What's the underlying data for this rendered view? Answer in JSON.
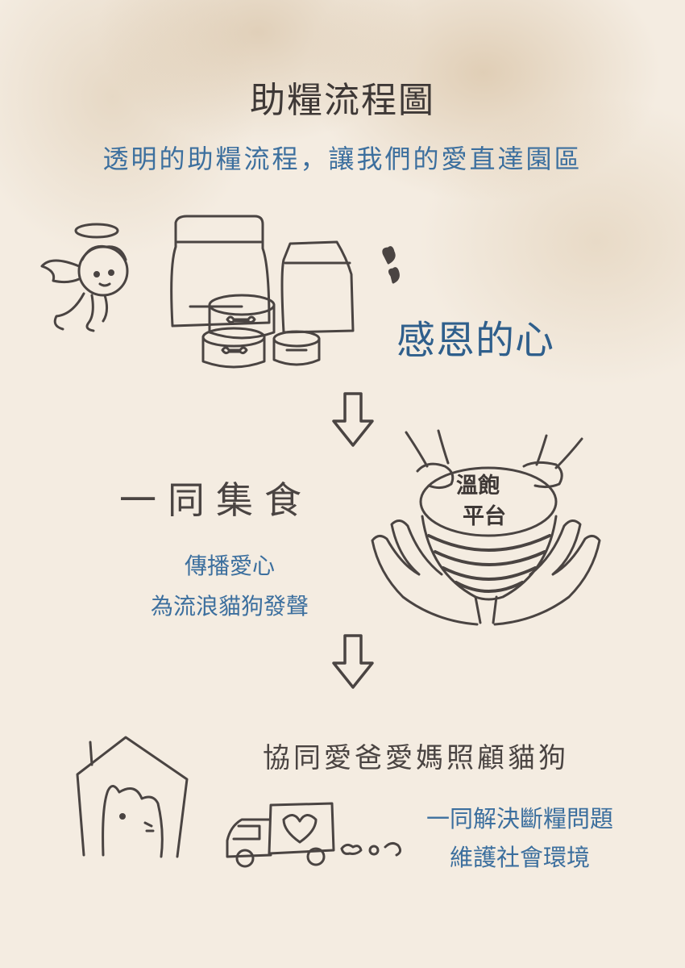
{
  "title": "助糧流程圖",
  "subtitle": "透明的助糧流程，讓我們的愛直達園區",
  "step1": {
    "label": "感恩的心"
  },
  "step2": {
    "heading": "一同集食",
    "line1": "傳播愛心",
    "line2": "為流浪貓狗發聲",
    "bowl_line1": "溫飽",
    "bowl_line2": "平台"
  },
  "step3": {
    "heading": "協同愛爸愛媽照顧貓狗",
    "line1": "一同解決斷糧問題",
    "line2": "維護社會環境"
  },
  "colors": {
    "background": "#f4ece1",
    "accent_blue": "#3c6f9e",
    "ink": "#4a4442"
  },
  "icons": [
    "angel-icon",
    "pet-food-bags-icon",
    "heart-icon",
    "down-arrow-icon",
    "hands-bowl-icon",
    "house-cat-icon",
    "truck-icon"
  ]
}
